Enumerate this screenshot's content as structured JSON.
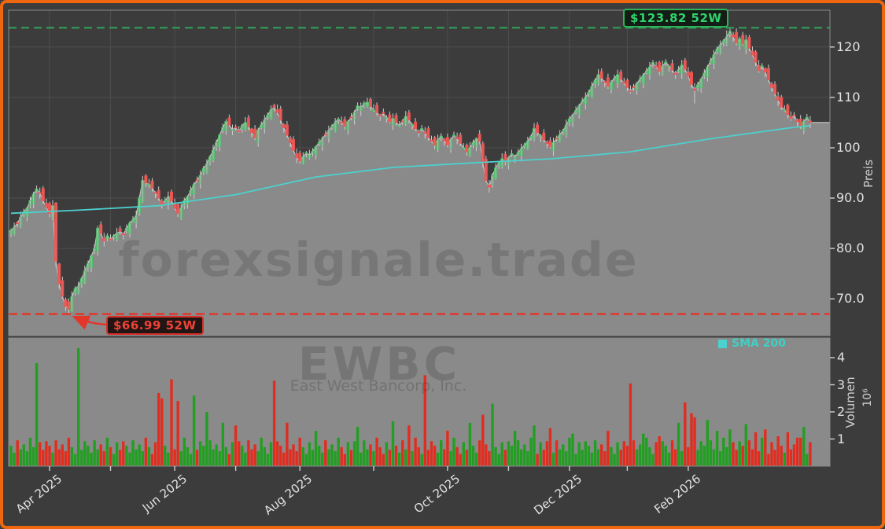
{
  "window": {
    "background": "#3c3c3c",
    "border_color": "#ee670e"
  },
  "chart_data": {
    "type": "candlestick",
    "symbol": "EWBC",
    "company": "East West Bancorp, Inc.",
    "watermark": "forexsignale.trade",
    "legend": {
      "label": "SMA 200",
      "color": "#4DD0CE",
      "position": "below-price-panel-right"
    },
    "annotations": {
      "high52w": {
        "label": "$123.82 52W",
        "value": 123.82,
        "color": "#2fd46d"
      },
      "low52w": {
        "label": "$66.99 52W",
        "value": 66.99,
        "color": "#f04237"
      }
    },
    "y_axis": {
      "label": "Preis",
      "side": "right",
      "range": [
        62.7,
        127.3
      ],
      "ticks": [
        {
          "v": 120,
          "label": "120"
        },
        {
          "v": 110,
          "label": "110"
        },
        {
          "v": 100,
          "label": "100"
        },
        {
          "v": 90,
          "label": "90.0"
        },
        {
          "v": 80,
          "label": "80.0"
        },
        {
          "v": 70,
          "label": "70.0"
        }
      ]
    },
    "volume_axis": {
      "label": "Volumen",
      "unit": "10⁶",
      "range": [
        0,
        4.72
      ],
      "ticks": [
        {
          "v": 4,
          "label": "4"
        },
        {
          "v": 3,
          "label": "3"
        },
        {
          "v": 2,
          "label": "2"
        },
        {
          "v": 1,
          "label": "1"
        }
      ]
    },
    "x_axis": {
      "major_ticks": [
        {
          "label": "Apr 2025",
          "i": 12
        },
        {
          "label": "Jun 2025",
          "i": 51
        },
        {
          "label": "Aug 2025",
          "i": 90
        },
        {
          "label": "Oct 2025",
          "i": 136
        },
        {
          "label": "Dec 2025",
          "i": 174
        },
        {
          "label": "Feb 2026",
          "i": 211
        }
      ],
      "minor_ticks": [
        31,
        70,
        113,
        155,
        192
      ]
    },
    "series": {
      "count": 250,
      "close": [
        83.5,
        84.2,
        85.0,
        86.2,
        87.3,
        88.0,
        89.5,
        90.8,
        91.8,
        91.0,
        89.5,
        88.2,
        87.0,
        88.5,
        77.5,
        73.0,
        70.5,
        68.5,
        68.0,
        70.5,
        72.0,
        72.5,
        74.0,
        75.5,
        77.0,
        78.5,
        80.0,
        84.0,
        83.0,
        81.5,
        82.5,
        81.8,
        82.5,
        83.0,
        83.4,
        82.8,
        84.0,
        85.0,
        85.7,
        86.5,
        90.0,
        93.5,
        93.0,
        92.7,
        92.0,
        91.0,
        90.0,
        88.8,
        89.5,
        90.3,
        89.5,
        88.0,
        87.0,
        88.0,
        89.5,
        90.3,
        91.5,
        92.7,
        93.5,
        94.5,
        95.9,
        96.8,
        98.2,
        99.5,
        101.0,
        102.5,
        104.0,
        105.2,
        104.5,
        103.6,
        104.0,
        103.2,
        104.4,
        105.0,
        104.2,
        103.0,
        102.0,
        103.5,
        104.5,
        105.5,
        106.5,
        107.5,
        108.0,
        107.0,
        105.5,
        104.0,
        102.5,
        101.0,
        99.5,
        98.0,
        97.4,
        98.2,
        99.0,
        98.5,
        99.3,
        100.2,
        101.0,
        101.8,
        102.6,
        103.4,
        104.2,
        105.0,
        105.7,
        105.0,
        104.3,
        105.2,
        106.0,
        107.0,
        108.3,
        108.0,
        108.8,
        109.0,
        108.2,
        107.5,
        107.0,
        106.3,
        106.8,
        106.0,
        105.2,
        105.8,
        105.0,
        104.4,
        105.3,
        106.2,
        105.5,
        104.6,
        103.8,
        103.0,
        103.8,
        102.9,
        102.0,
        101.3,
        100.5,
        101.5,
        102.3,
        101.4,
        100.6,
        101.6,
        102.5,
        101.8,
        100.9,
        100.0,
        99.2,
        100.0,
        101.0,
        101.8,
        101.3,
        97.0,
        93.5,
        92.2,
        94.5,
        96.0,
        97.0,
        97.8,
        97.2,
        98.0,
        98.8,
        98.2,
        99.0,
        99.8,
        100.5,
        101.3,
        102.2,
        103.8,
        103.0,
        102.4,
        101.6,
        100.8,
        100.2,
        101.0,
        101.8,
        102.6,
        103.4,
        104.5,
        105.7,
        106.5,
        107.4,
        108.3,
        109.2,
        110.0,
        111.0,
        112.2,
        113.4,
        114.5,
        113.8,
        113.0,
        112.2,
        113.0,
        113.8,
        114.5,
        113.6,
        112.8,
        112.0,
        111.2,
        112.0,
        112.8,
        113.6,
        114.4,
        115.2,
        116.0,
        116.9,
        116.0,
        115.2,
        116.2,
        117.0,
        116.2,
        115.4,
        114.6,
        115.5,
        116.4,
        115.6,
        114.2,
        112.6,
        111.4,
        112.5,
        113.6,
        114.8,
        116.0,
        117.2,
        118.4,
        119.6,
        120.4,
        121.2,
        122.0,
        123.1,
        122.0,
        120.8,
        121.6,
        120.6,
        121.4,
        119.8,
        118.4,
        117.0,
        115.3,
        116.2,
        115.0,
        113.5,
        112.0,
        110.7,
        109.4,
        108.1,
        107.5,
        106.6,
        105.8,
        106.4,
        105.2,
        104.2,
        105.2,
        106.0,
        105.0
      ],
      "open_rule": "previous_close_plus_jitter",
      "open_jitter": [
        0.6,
        -0.7,
        0.9,
        -0.5,
        0.7,
        -0.9,
        0.5,
        -0.6
      ],
      "wick_pattern": [
        0.5,
        0.9,
        0.35,
        1.1,
        0.6,
        0.25,
        0.8,
        0.45,
        0.7,
        1.0
      ],
      "overrides": {
        "high": {
          "14": 89.2,
          "223": 123.3,
          "224": 123.82,
          "225": 123.0
        },
        "low": {
          "14": 76.3,
          "17": 67.6,
          "18": 66.99,
          "19": 67.4,
          "213": 108.8
        }
      },
      "sma200": [
        [
          0,
          87.0
        ],
        [
          21,
          87.6
        ],
        [
          46,
          88.5
        ],
        [
          70,
          90.7
        ],
        [
          95,
          94.2
        ],
        [
          119,
          96.1
        ],
        [
          144,
          97.0
        ],
        [
          168,
          97.8
        ],
        [
          193,
          99.2
        ],
        [
          217,
          101.7
        ],
        [
          242,
          103.9
        ],
        [
          249,
          104.4
        ]
      ],
      "volume_base": [
        0.75,
        0.5,
        0.95,
        0.62,
        0.8,
        0.55,
        1.05,
        0.7,
        0.45,
        0.88,
        0.6,
        0.92
      ],
      "volume_spikes": {
        "8": 3.8,
        "21": 4.35,
        "46": 2.7,
        "47": 2.5,
        "50": 3.2,
        "52": 2.4,
        "57": 2.6,
        "61": 2.0,
        "66": 1.6,
        "70": 1.5,
        "82": 3.15,
        "86": 1.6,
        "95": 1.3,
        "108": 1.45,
        "119": 1.65,
        "124": 1.5,
        "129": 3.35,
        "136": 1.3,
        "143": 1.6,
        "147": 1.9,
        "150": 2.3,
        "157": 1.3,
        "163": 1.5,
        "168": 1.4,
        "175": 1.2,
        "186": 1.3,
        "193": 3.05,
        "197": 1.2,
        "202": 1.1,
        "208": 1.6,
        "210": 2.35,
        "212": 1.95,
        "213": 1.8,
        "217": 1.7,
        "220": 1.3,
        "224": 1.35,
        "229": 1.55,
        "232": 1.25,
        "235": 1.35,
        "239": 1.1,
        "242": 1.25,
        "245": 1.05,
        "247": 1.45
      }
    },
    "colors": {
      "bg": "#3c3c3c",
      "grid": "#4e4e4e",
      "spine": "#8a8a8a",
      "area": "#8a8a8a",
      "area_edge": "#c2c2c2",
      "up": "#4fc36a",
      "up_fill": "rgba(80,190,106,0.28)",
      "down": "#ef5350",
      "down_fill": "rgba(239,83,80,0.85)",
      "wick": "#cdcdcd",
      "sma": "#4DD0CE",
      "vol_up": "#229e22",
      "vol_down": "#e02d1f",
      "high_line": "#2f9e57",
      "low_line": "#e3362b",
      "tick_mark": "#cfcfcf",
      "tick_text": "#e2e2e2"
    }
  }
}
